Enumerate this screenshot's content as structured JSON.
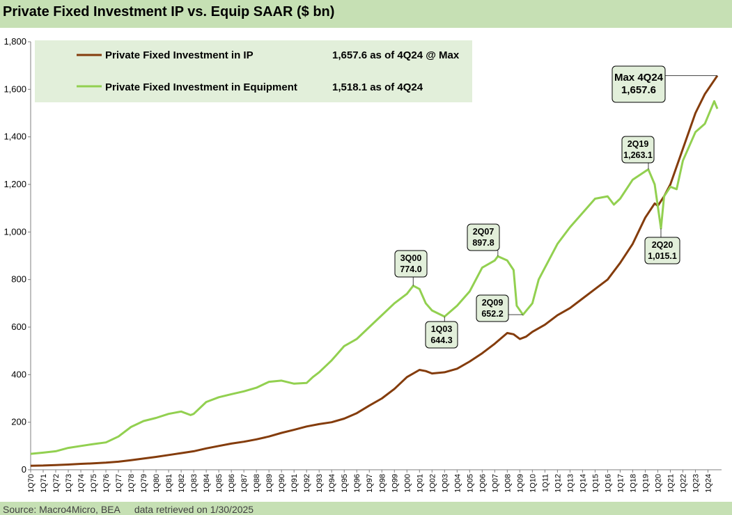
{
  "title": "Private Fixed Investment IP vs. Equip SAAR ($ bn)",
  "source": "Source: Macro4Micro, BEA",
  "retrieved": "data retrieved on 1/30/2025",
  "colors": {
    "ip": "#843c0c",
    "equipment": "#92d050",
    "background": "#c6e0b4",
    "legend_bg": "#e2efda"
  },
  "chart_data": {
    "type": "line",
    "title": "Private Fixed Investment IP vs. Equip SAAR ($ bn)",
    "ylim": [
      0,
      1800
    ],
    "yticks": [
      "0",
      "200",
      "400",
      "600",
      "800",
      "1,000",
      "1,200",
      "1,400",
      "1,600",
      "1,800"
    ],
    "xlim": [
      1970.0,
      2024.75
    ],
    "xtick_labels": [
      "1Q70",
      "1Q71",
      "1Q72",
      "1Q73",
      "1Q74",
      "1Q75",
      "1Q76",
      "1Q77",
      "1Q78",
      "1Q79",
      "1Q80",
      "1Q81",
      "1Q82",
      "1Q83",
      "1Q84",
      "1Q85",
      "1Q86",
      "1Q87",
      "1Q88",
      "1Q89",
      "1Q90",
      "1Q91",
      "1Q92",
      "1Q93",
      "1Q94",
      "1Q95",
      "1Q96",
      "1Q97",
      "1Q98",
      "1Q99",
      "1Q00",
      "1Q01",
      "1Q02",
      "1Q03",
      "1Q04",
      "1Q05",
      "1Q06",
      "1Q07",
      "1Q08",
      "1Q09",
      "1Q10",
      "1Q11",
      "1Q12",
      "1Q13",
      "1Q14",
      "1Q15",
      "1Q16",
      "1Q17",
      "1Q18",
      "1Q19",
      "1Q20",
      "1Q21",
      "1Q22",
      "1Q23",
      "1Q24"
    ],
    "grid": false,
    "legend_position": "top-left",
    "series": [
      {
        "name": "Private Fixed Investment in IP",
        "legend_value": "1,657.6 as of 4Q24 @ Max",
        "color": "#843c0c",
        "points": [
          [
            1970,
            17
          ],
          [
            1971,
            18
          ],
          [
            1972,
            20
          ],
          [
            1973,
            22
          ],
          [
            1974,
            25
          ],
          [
            1975,
            27
          ],
          [
            1976,
            30
          ],
          [
            1977,
            34
          ],
          [
            1978,
            40
          ],
          [
            1979,
            47
          ],
          [
            1980,
            54
          ],
          [
            1981,
            62
          ],
          [
            1982,
            70
          ],
          [
            1983,
            78
          ],
          [
            1984,
            90
          ],
          [
            1985,
            100
          ],
          [
            1986,
            110
          ],
          [
            1987,
            118
          ],
          [
            1988,
            128
          ],
          [
            1989,
            140
          ],
          [
            1990,
            155
          ],
          [
            1991,
            168
          ],
          [
            1992,
            182
          ],
          [
            1993,
            192
          ],
          [
            1994,
            200
          ],
          [
            1995,
            215
          ],
          [
            1996,
            238
          ],
          [
            1997,
            270
          ],
          [
            1998,
            300
          ],
          [
            1999,
            340
          ],
          [
            2000,
            390
          ],
          [
            2001,
            420
          ],
          [
            2001.5,
            415
          ],
          [
            2002,
            405
          ],
          [
            2003,
            410
          ],
          [
            2004,
            425
          ],
          [
            2005,
            455
          ],
          [
            2006,
            490
          ],
          [
            2007,
            530
          ],
          [
            2008,
            575
          ],
          [
            2008.5,
            570
          ],
          [
            2009,
            550
          ],
          [
            2009.5,
            560
          ],
          [
            2010,
            580
          ],
          [
            2011,
            610
          ],
          [
            2012,
            650
          ],
          [
            2013,
            680
          ],
          [
            2014,
            720
          ],
          [
            2015,
            760
          ],
          [
            2016,
            800
          ],
          [
            2017,
            870
          ],
          [
            2018,
            950
          ],
          [
            2019,
            1060
          ],
          [
            2019.75,
            1120
          ],
          [
            2020,
            1110
          ],
          [
            2020.5,
            1150
          ],
          [
            2021,
            1200
          ],
          [
            2022,
            1350
          ],
          [
            2023,
            1500
          ],
          [
            2023.75,
            1580
          ],
          [
            2024.75,
            1657.6
          ]
        ]
      },
      {
        "name": "Private Fixed Investment in Equipment",
        "legend_value": "1,518.1 as of 4Q24",
        "color": "#92d050",
        "points": [
          [
            1970,
            67
          ],
          [
            1971,
            72
          ],
          [
            1972,
            78
          ],
          [
            1973,
            92
          ],
          [
            1974,
            100
          ],
          [
            1975,
            108
          ],
          [
            1976,
            115
          ],
          [
            1977,
            140
          ],
          [
            1978,
            180
          ],
          [
            1979,
            205
          ],
          [
            1980,
            218
          ],
          [
            1981,
            235
          ],
          [
            1982,
            245
          ],
          [
            1982.75,
            230
          ],
          [
            1983,
            235
          ],
          [
            1984,
            285
          ],
          [
            1985,
            305
          ],
          [
            1986,
            318
          ],
          [
            1987,
            330
          ],
          [
            1988,
            345
          ],
          [
            1989,
            370
          ],
          [
            1990,
            375
          ],
          [
            1991,
            362
          ],
          [
            1992,
            365
          ],
          [
            1992.5,
            390
          ],
          [
            1993,
            410
          ],
          [
            1994,
            460
          ],
          [
            1995,
            520
          ],
          [
            1996,
            550
          ],
          [
            1997,
            600
          ],
          [
            1998,
            650
          ],
          [
            1999,
            700
          ],
          [
            2000,
            740
          ],
          [
            2000.5,
            774
          ],
          [
            2001,
            760
          ],
          [
            2001.5,
            700
          ],
          [
            2002,
            670
          ],
          [
            2003,
            644.3
          ],
          [
            2004,
            690
          ],
          [
            2005,
            750
          ],
          [
            2006,
            850
          ],
          [
            2007,
            880
          ],
          [
            2007.25,
            897.8
          ],
          [
            2008,
            880
          ],
          [
            2008.5,
            840
          ],
          [
            2008.75,
            690
          ],
          [
            2009.25,
            652.2
          ],
          [
            2010,
            700
          ],
          [
            2010.5,
            800
          ],
          [
            2011,
            850
          ],
          [
            2012,
            950
          ],
          [
            2013,
            1020
          ],
          [
            2014,
            1080
          ],
          [
            2015,
            1140
          ],
          [
            2016,
            1150
          ],
          [
            2016.5,
            1115
          ],
          [
            2017,
            1140
          ],
          [
            2018,
            1220
          ],
          [
            2019,
            1255
          ],
          [
            2019.25,
            1263.1
          ],
          [
            2019.75,
            1200
          ],
          [
            2020.25,
            1015.1
          ],
          [
            2020.5,
            1150
          ],
          [
            2021,
            1190
          ],
          [
            2021.5,
            1180
          ],
          [
            2022,
            1300
          ],
          [
            2023,
            1420
          ],
          [
            2023.75,
            1455
          ],
          [
            2024.5,
            1550
          ],
          [
            2024.75,
            1518.1
          ]
        ]
      }
    ],
    "annotations": [
      {
        "label": "3Q00",
        "value": "774.0"
      },
      {
        "label": "1Q03",
        "value": "644.3"
      },
      {
        "label": "2Q07",
        "value": "897.8"
      },
      {
        "label": "2Q09",
        "value": "652.2"
      },
      {
        "label": "2Q19",
        "value": "1,263.1"
      },
      {
        "label": "2Q20",
        "value": "1,015.1"
      },
      {
        "label": "Max 4Q24",
        "value": "1,657.6"
      }
    ]
  }
}
